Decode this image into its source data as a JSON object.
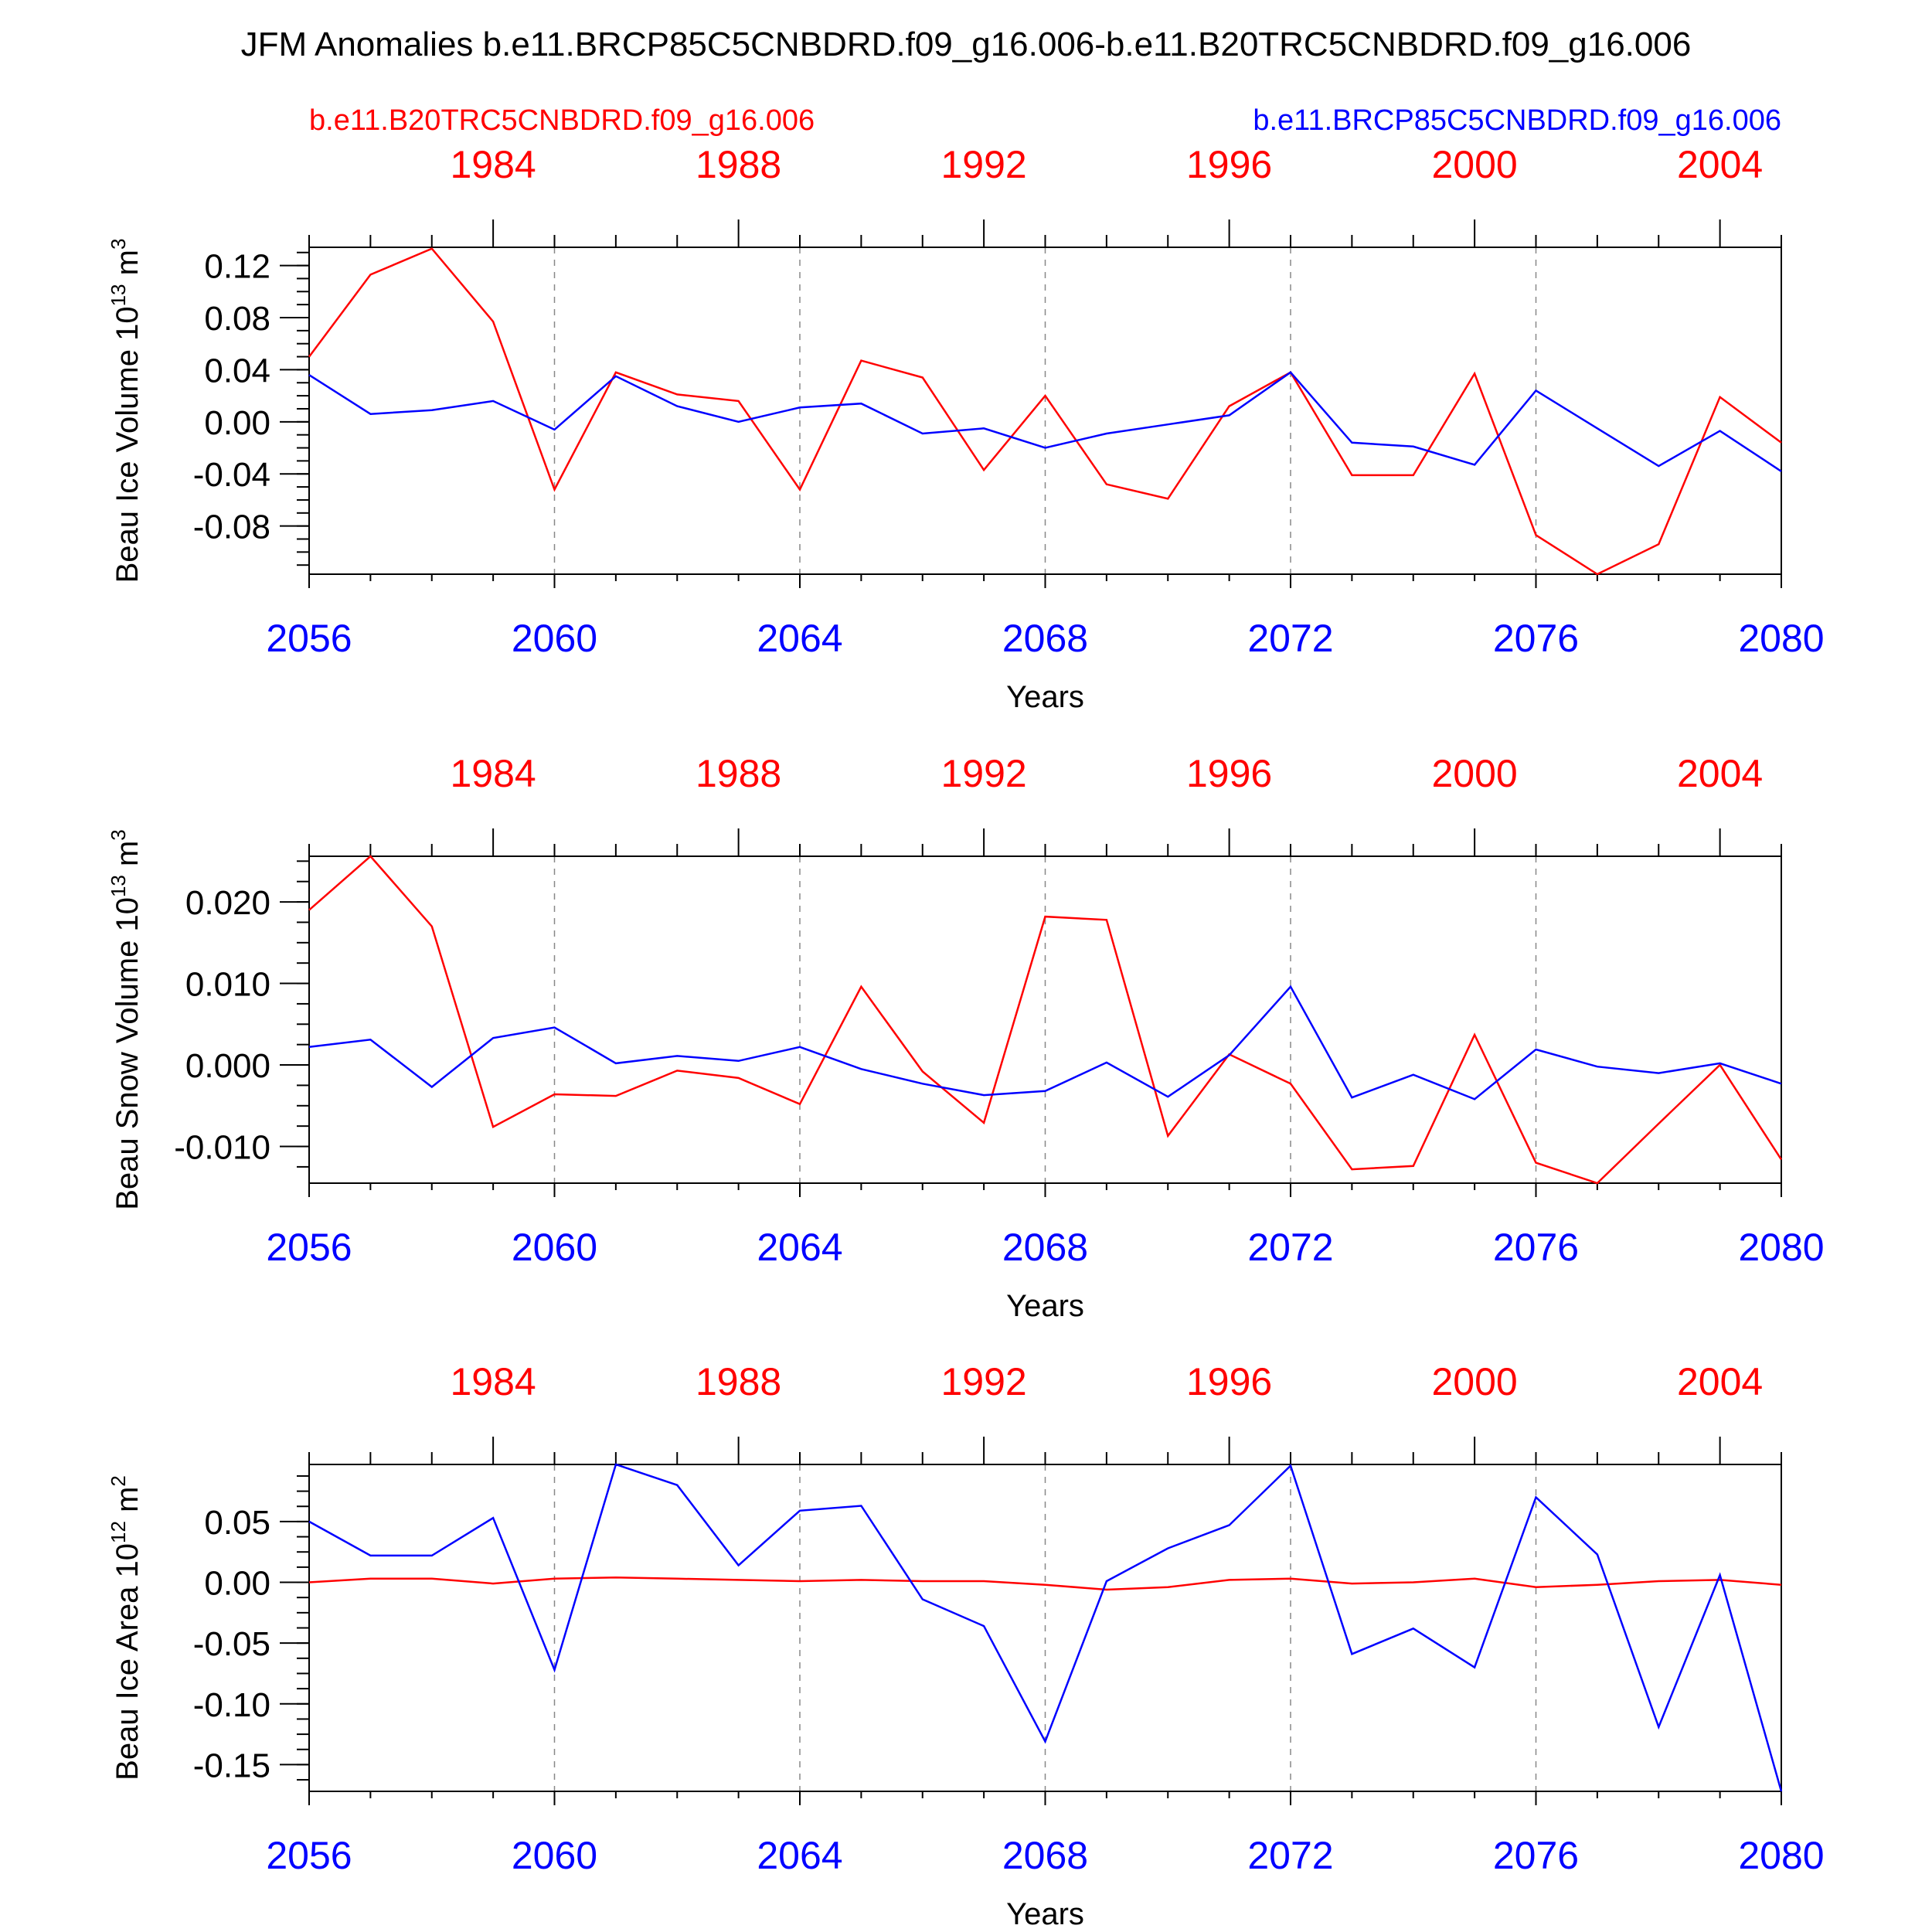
{
  "title": "JFM Anomalies b.e11.BRCP85C5CNBDRD.f09_g16.006-b.e11.B20TRC5CNBDRD.f09_g16.006",
  "legend": {
    "hist_label": "b.e11.B20TRC5CNBDRD.f09_g16.006",
    "hist_color": "#ff0000",
    "rcp_label": "b.e11.BRCP85C5CNBDRD.f09_g16.006",
    "rcp_color": "#0000ff"
  },
  "chart_data": [
    {
      "type": "line",
      "ylabel": "Beau Ice Volume 10",
      "ylabel_exp": "13",
      "ylabel_unit": " m",
      "ylabel_unit_exp": "3",
      "xlabel": "Years",
      "xlim": [
        2056,
        2080
      ],
      "top_xlim": [
        1981,
        2005
      ],
      "ylim": [
        -0.117,
        0.134
      ],
      "yticks": [
        0.12,
        0.08,
        0.04,
        0.0,
        -0.04,
        -0.08
      ],
      "ytick_labels": [
        "0.12",
        "0.08",
        "0.04",
        "0.00",
        "-0.04",
        "-0.08"
      ],
      "x": [
        2056,
        2057,
        2058,
        2059,
        2060,
        2061,
        2062,
        2063,
        2064,
        2065,
        2066,
        2067,
        2068,
        2069,
        2070,
        2071,
        2072,
        2073,
        2074,
        2075,
        2076,
        2077,
        2078,
        2079,
        2080
      ],
      "series": [
        {
          "name": "b.e11.B20TRC5CNBDRD.f09_g16.006",
          "color": "#ff0000",
          "values": [
            0.05,
            0.113,
            0.133,
            0.077,
            -0.052,
            0.038,
            0.021,
            0.016,
            -0.052,
            0.047,
            0.034,
            -0.037,
            0.02,
            -0.048,
            -0.059,
            0.012,
            0.038,
            -0.041,
            -0.041,
            0.037,
            -0.087,
            -0.117,
            -0.094,
            0.019,
            -0.016
          ]
        },
        {
          "name": "b.e11.BRCP85C5CNBDRD.f09_g16.006",
          "color": "#0000ff",
          "values": [
            0.036,
            0.006,
            0.009,
            0.016,
            -0.006,
            0.035,
            0.012,
            0.0,
            0.011,
            0.014,
            -0.009,
            -0.005,
            -0.02,
            -0.009,
            -0.002,
            0.005,
            0.038,
            -0.016,
            -0.019,
            -0.033,
            0.024,
            -0.005,
            -0.034,
            -0.007,
            -0.038
          ]
        }
      ]
    },
    {
      "type": "line",
      "ylabel": "Beau Snow Volume 10",
      "ylabel_exp": "13",
      "ylabel_unit": " m",
      "ylabel_unit_exp": "3",
      "xlabel": "Years",
      "xlim": [
        2056,
        2080
      ],
      "top_xlim": [
        1981,
        2005
      ],
      "ylim": [
        -0.0145,
        0.0256
      ],
      "yticks": [
        0.02,
        0.01,
        0.0,
        -0.01
      ],
      "ytick_labels": [
        "0.020",
        "0.010",
        "0.000",
        "-0.010"
      ],
      "x": [
        2056,
        2057,
        2058,
        2059,
        2060,
        2061,
        2062,
        2063,
        2064,
        2065,
        2066,
        2067,
        2068,
        2069,
        2070,
        2071,
        2072,
        2073,
        2074,
        2075,
        2076,
        2077,
        2078,
        2079,
        2080
      ],
      "series": [
        {
          "name": "b.e11.B20TRC5CNBDRD.f09_g16.006",
          "color": "#ff0000",
          "values": [
            0.019,
            0.0256,
            0.017,
            -0.0076,
            -0.0036,
            -0.0038,
            -0.0007,
            -0.0016,
            -0.0048,
            0.0096,
            -0.0008,
            -0.0071,
            0.0182,
            0.0178,
            -0.0087,
            0.0013,
            -0.0023,
            -0.0128,
            -0.0124,
            0.0037,
            -0.012,
            -0.0145,
            -0.0072,
            0.0,
            -0.0116
          ]
        },
        {
          "name": "b.e11.BRCP85C5CNBDRD.f09_g16.006",
          "color": "#0000ff",
          "values": [
            0.0022,
            0.0031,
            -0.0027,
            0.0033,
            0.0046,
            0.0002,
            0.0011,
            0.0005,
            0.0022,
            -0.0005,
            -0.0023,
            -0.0037,
            -0.0032,
            0.0003,
            -0.0039,
            0.0012,
            0.0096,
            -0.004,
            -0.0012,
            -0.0042,
            0.0019,
            -0.0002,
            -0.001,
            0.0002,
            -0.0023
          ]
        }
      ]
    },
    {
      "type": "line",
      "ylabel": "Beau Ice Area 10",
      "ylabel_exp": "12",
      "ylabel_unit": " m",
      "ylabel_unit_exp": "2",
      "xlabel": "Years",
      "xlim": [
        2056,
        2080
      ],
      "top_xlim": [
        1981,
        2005
      ],
      "ylim": [
        -0.172,
        0.097
      ],
      "yticks": [
        0.05,
        0.0,
        -0.05,
        -0.1,
        -0.15
      ],
      "ytick_labels": [
        "0.05",
        "0.00",
        "-0.05",
        "-0.10",
        "-0.15"
      ],
      "x": [
        2056,
        2057,
        2058,
        2059,
        2060,
        2061,
        2062,
        2063,
        2064,
        2065,
        2066,
        2067,
        2068,
        2069,
        2070,
        2071,
        2072,
        2073,
        2074,
        2075,
        2076,
        2077,
        2078,
        2079,
        2080
      ],
      "series": [
        {
          "name": "b.e11.B20TRC5CNBDRD.f09_g16.006",
          "color": "#ff0000",
          "values": [
            0.0,
            0.003,
            0.003,
            -0.001,
            0.003,
            0.004,
            0.003,
            0.002,
            0.001,
            0.002,
            0.001,
            0.001,
            -0.002,
            -0.006,
            -0.004,
            0.002,
            0.003,
            -0.001,
            0.0,
            0.003,
            -0.004,
            -0.002,
            0.001,
            0.002,
            -0.002
          ]
        },
        {
          "name": "b.e11.BRCP85C5CNBDRD.f09_g16.006",
          "color": "#0000ff",
          "values": [
            0.05,
            0.022,
            0.022,
            0.053,
            -0.072,
            0.097,
            0.08,
            0.014,
            0.059,
            0.063,
            -0.014,
            -0.036,
            -0.131,
            0.001,
            0.028,
            0.047,
            0.096,
            -0.059,
            -0.038,
            -0.07,
            0.07,
            0.023,
            -0.119,
            0.006,
            -0.172
          ]
        }
      ]
    }
  ]
}
